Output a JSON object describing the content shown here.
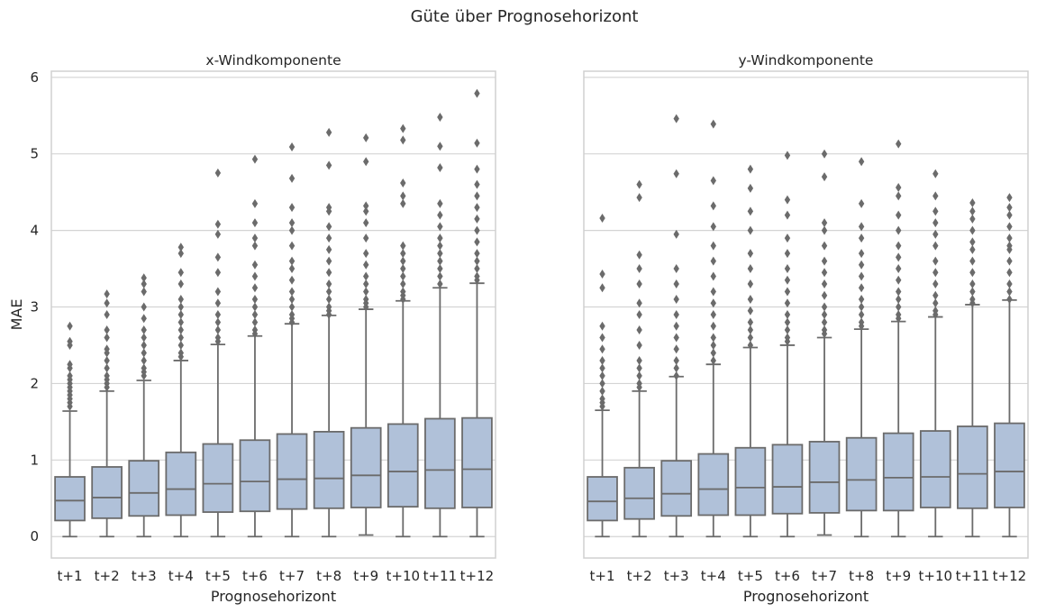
{
  "figure": {
    "suptitle": "Güte über Prognosehorizont"
  },
  "colors": {
    "box_fill": "#b0c1d9",
    "box_line": "#6b6b6b",
    "grid": "#d4d4d4",
    "frame": "#d0d0d0"
  },
  "chart_data": [
    {
      "type": "box",
      "title": "x-Windkomponente",
      "xlabel": "Prognosehorizont",
      "ylabel": "MAE",
      "ylim": [
        -0.28,
        6.08
      ],
      "yticks": [
        0,
        1,
        2,
        3,
        4,
        5,
        6
      ],
      "grid": "horizontal",
      "categories": [
        "t+1",
        "t+2",
        "t+3",
        "t+4",
        "t+5",
        "t+6",
        "t+7",
        "t+8",
        "t+9",
        "t+10",
        "t+11",
        "t+12"
      ],
      "boxes": [
        {
          "whislo": 0.0,
          "q1": 0.21,
          "med": 0.47,
          "q3": 0.78,
          "whishi": 1.64,
          "fliers": [
            1.7,
            1.75,
            1.8,
            1.85,
            1.9,
            1.95,
            2.0,
            2.05,
            2.1,
            2.2,
            2.25,
            2.5,
            2.55,
            2.75
          ]
        },
        {
          "whislo": 0.0,
          "q1": 0.24,
          "med": 0.51,
          "q3": 0.91,
          "whishi": 1.9,
          "fliers": [
            1.95,
            2.0,
            2.05,
            2.1,
            2.2,
            2.3,
            2.4,
            2.45,
            2.6,
            2.7,
            2.9,
            3.05,
            3.17
          ]
        },
        {
          "whislo": 0.0,
          "q1": 0.27,
          "med": 0.57,
          "q3": 0.99,
          "whishi": 2.04,
          "fliers": [
            2.1,
            2.15,
            2.2,
            2.3,
            2.4,
            2.5,
            2.6,
            2.7,
            2.85,
            3.0,
            3.2,
            3.3,
            3.38
          ]
        },
        {
          "whislo": 0.0,
          "q1": 0.28,
          "med": 0.62,
          "q3": 1.1,
          "whishi": 2.3,
          "fliers": [
            2.35,
            2.4,
            2.5,
            2.6,
            2.7,
            2.8,
            2.9,
            3.0,
            3.1,
            3.3,
            3.45,
            3.7,
            3.78
          ]
        },
        {
          "whislo": 0.0,
          "q1": 0.32,
          "med": 0.69,
          "q3": 1.21,
          "whishi": 2.51,
          "fliers": [
            2.55,
            2.6,
            2.7,
            2.8,
            2.9,
            3.05,
            3.2,
            3.45,
            3.65,
            3.95,
            4.08,
            4.75
          ]
        },
        {
          "whislo": 0.0,
          "q1": 0.33,
          "med": 0.72,
          "q3": 1.26,
          "whishi": 2.62,
          "fliers": [
            2.65,
            2.7,
            2.8,
            2.9,
            3.0,
            3.1,
            3.25,
            3.4,
            3.55,
            3.8,
            3.9,
            4.1,
            4.35,
            4.93
          ]
        },
        {
          "whislo": 0.0,
          "q1": 0.36,
          "med": 0.75,
          "q3": 1.34,
          "whishi": 2.78,
          "fliers": [
            2.8,
            2.85,
            2.9,
            3.0,
            3.1,
            3.2,
            3.35,
            3.5,
            3.6,
            3.8,
            4.0,
            4.1,
            4.3,
            4.68,
            5.09
          ]
        },
        {
          "whislo": 0.0,
          "q1": 0.37,
          "med": 0.76,
          "q3": 1.37,
          "whishi": 2.89,
          "fliers": [
            2.9,
            2.95,
            3.0,
            3.1,
            3.2,
            3.3,
            3.45,
            3.6,
            3.75,
            3.9,
            4.05,
            4.25,
            4.3,
            4.85,
            5.28
          ]
        },
        {
          "whislo": 0.02,
          "q1": 0.38,
          "med": 0.8,
          "q3": 1.42,
          "whishi": 2.97,
          "fliers": [
            3.0,
            3.05,
            3.1,
            3.2,
            3.3,
            3.4,
            3.55,
            3.7,
            3.9,
            4.1,
            4.25,
            4.32,
            4.9,
            5.21
          ]
        },
        {
          "whislo": 0.0,
          "q1": 0.39,
          "med": 0.85,
          "q3": 1.47,
          "whishi": 3.08,
          "fliers": [
            3.1,
            3.15,
            3.2,
            3.3,
            3.4,
            3.5,
            3.6,
            3.7,
            3.8,
            4.35,
            4.45,
            4.62,
            5.18,
            5.33
          ]
        },
        {
          "whislo": 0.0,
          "q1": 0.37,
          "med": 0.87,
          "q3": 1.54,
          "whishi": 3.25,
          "fliers": [
            3.3,
            3.4,
            3.5,
            3.6,
            3.7,
            3.8,
            3.9,
            4.05,
            4.2,
            4.35,
            4.82,
            5.1,
            5.48
          ]
        },
        {
          "whislo": 0.0,
          "q1": 0.38,
          "med": 0.88,
          "q3": 1.55,
          "whishi": 3.31,
          "fliers": [
            3.35,
            3.4,
            3.5,
            3.6,
            3.7,
            3.85,
            4.0,
            4.15,
            4.3,
            4.45,
            4.6,
            4.8,
            5.14,
            5.79
          ]
        }
      ]
    },
    {
      "type": "box",
      "title": "y-Windkomponente",
      "xlabel": "Prognosehorizont",
      "ylabel": "",
      "ylim": [
        -0.28,
        6.08
      ],
      "yticks": [
        0,
        1,
        2,
        3,
        4,
        5,
        6
      ],
      "grid": "horizontal",
      "categories": [
        "t+1",
        "t+2",
        "t+3",
        "t+4",
        "t+5",
        "t+6",
        "t+7",
        "t+8",
        "t+9",
        "t+10",
        "t+11",
        "t+12"
      ],
      "boxes": [
        {
          "whislo": 0.0,
          "q1": 0.21,
          "med": 0.46,
          "q3": 0.78,
          "whishi": 1.65,
          "fliers": [
            1.7,
            1.75,
            1.8,
            1.9,
            2.0,
            2.1,
            2.2,
            2.3,
            2.45,
            2.6,
            2.75,
            3.25,
            3.43,
            4.16
          ]
        },
        {
          "whislo": 0.0,
          "q1": 0.23,
          "med": 0.5,
          "q3": 0.9,
          "whishi": 1.9,
          "fliers": [
            1.95,
            2.0,
            2.1,
            2.2,
            2.3,
            2.5,
            2.7,
            2.9,
            3.05,
            3.3,
            3.5,
            3.68,
            4.43,
            4.6
          ]
        },
        {
          "whislo": 0.0,
          "q1": 0.27,
          "med": 0.56,
          "q3": 0.99,
          "whishi": 2.09,
          "fliers": [
            2.1,
            2.2,
            2.3,
            2.45,
            2.6,
            2.75,
            2.9,
            3.1,
            3.3,
            3.5,
            3.95,
            4.74,
            5.46
          ]
        },
        {
          "whislo": 0.0,
          "q1": 0.28,
          "med": 0.62,
          "q3": 1.08,
          "whishi": 2.25,
          "fliers": [
            2.3,
            2.4,
            2.5,
            2.6,
            2.75,
            2.9,
            3.05,
            3.2,
            3.4,
            3.6,
            3.8,
            4.05,
            4.32,
            4.65,
            5.39
          ]
        },
        {
          "whislo": 0.0,
          "q1": 0.28,
          "med": 0.64,
          "q3": 1.16,
          "whishi": 2.47,
          "fliers": [
            2.5,
            2.6,
            2.7,
            2.8,
            2.95,
            3.1,
            3.3,
            3.5,
            3.7,
            4.0,
            4.25,
            4.55,
            4.8
          ]
        },
        {
          "whislo": 0.0,
          "q1": 0.3,
          "med": 0.65,
          "q3": 1.2,
          "whishi": 2.5,
          "fliers": [
            2.55,
            2.6,
            2.7,
            2.8,
            2.9,
            3.05,
            3.2,
            3.35,
            3.5,
            3.7,
            3.9,
            4.2,
            4.4,
            4.98
          ]
        },
        {
          "whislo": 0.02,
          "q1": 0.31,
          "med": 0.71,
          "q3": 1.24,
          "whishi": 2.6,
          "fliers": [
            2.65,
            2.7,
            2.8,
            2.9,
            3.0,
            3.15,
            3.3,
            3.45,
            3.6,
            3.8,
            4.0,
            4.1,
            4.7,
            5.0
          ]
        },
        {
          "whislo": 0.0,
          "q1": 0.34,
          "med": 0.74,
          "q3": 1.29,
          "whishi": 2.71,
          "fliers": [
            2.75,
            2.8,
            2.9,
            3.0,
            3.1,
            3.25,
            3.4,
            3.55,
            3.7,
            3.9,
            4.05,
            4.35,
            4.9
          ]
        },
        {
          "whislo": 0.0,
          "q1": 0.34,
          "med": 0.77,
          "q3": 1.35,
          "whishi": 2.81,
          "fliers": [
            2.85,
            2.9,
            3.0,
            3.1,
            3.2,
            3.35,
            3.5,
            3.65,
            3.8,
            4.0,
            4.2,
            4.45,
            4.56,
            5.13
          ]
        },
        {
          "whislo": 0.0,
          "q1": 0.38,
          "med": 0.78,
          "q3": 1.38,
          "whishi": 2.87,
          "fliers": [
            2.9,
            2.95,
            3.05,
            3.15,
            3.3,
            3.45,
            3.6,
            3.8,
            3.95,
            4.1,
            4.25,
            4.45,
            4.74
          ]
        },
        {
          "whislo": 0.0,
          "q1": 0.37,
          "med": 0.82,
          "q3": 1.44,
          "whishi": 3.03,
          "fliers": [
            3.05,
            3.1,
            3.2,
            3.3,
            3.45,
            3.6,
            3.75,
            3.85,
            4.0,
            4.15,
            4.25,
            4.36
          ]
        },
        {
          "whislo": 0.0,
          "q1": 0.38,
          "med": 0.85,
          "q3": 1.48,
          "whishi": 3.09,
          "fliers": [
            3.1,
            3.2,
            3.3,
            3.45,
            3.6,
            3.75,
            3.8,
            3.9,
            4.05,
            4.2,
            4.3,
            4.43
          ]
        }
      ]
    }
  ]
}
